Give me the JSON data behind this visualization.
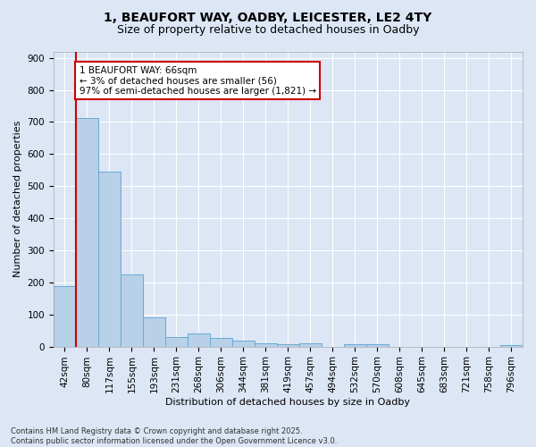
{
  "title_line1": "1, BEAUFORT WAY, OADBY, LEICESTER, LE2 4TY",
  "title_line2": "Size of property relative to detached houses in Oadby",
  "xlabel": "Distribution of detached houses by size in Oadby",
  "ylabel": "Number of detached properties",
  "bar_labels": [
    "42sqm",
    "80sqm",
    "117sqm",
    "155sqm",
    "193sqm",
    "231sqm",
    "268sqm",
    "306sqm",
    "344sqm",
    "381sqm",
    "419sqm",
    "457sqm",
    "494sqm",
    "532sqm",
    "570sqm",
    "608sqm",
    "645sqm",
    "683sqm",
    "721sqm",
    "758sqm",
    "796sqm"
  ],
  "bar_values": [
    189,
    712,
    546,
    225,
    91,
    30,
    40,
    26,
    18,
    11,
    7,
    11,
    0,
    8,
    7,
    0,
    0,
    0,
    0,
    0,
    4
  ],
  "bar_color": "#b8d0e8",
  "bar_edgecolor": "#6aaad4",
  "vline_color": "#cc0000",
  "annotation_text": "1 BEAUFORT WAY: 66sqm\n← 3% of detached houses are smaller (56)\n97% of semi-detached houses are larger (1,821) →",
  "annotation_box_color": "#cc0000",
  "ylim": [
    0,
    920
  ],
  "yticks": [
    0,
    100,
    200,
    300,
    400,
    500,
    600,
    700,
    800,
    900
  ],
  "fig_background": "#dce6f5",
  "plot_background": "#dce6f5",
  "grid_color": "#ffffff",
  "footnote": "Contains HM Land Registry data © Crown copyright and database right 2025.\nContains public sector information licensed under the Open Government Licence v3.0.",
  "title_fontsize": 10,
  "subtitle_fontsize": 9,
  "xlabel_fontsize": 8,
  "ylabel_fontsize": 8,
  "tick_fontsize": 7.5,
  "annot_fontsize": 7.5,
  "footnote_fontsize": 6
}
